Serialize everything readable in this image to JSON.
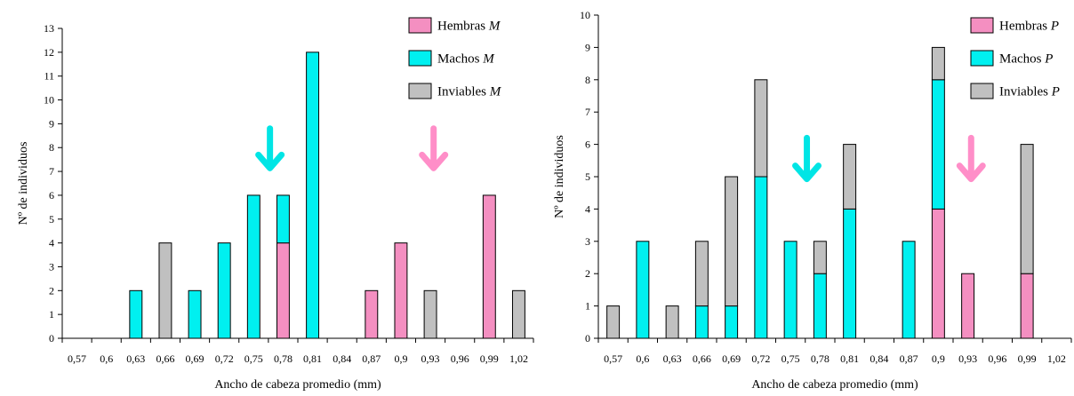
{
  "colors": {
    "hembras": "#f48fc1",
    "machos": "#00f0f0",
    "inviables": "#c0c0c0",
    "arrow_cyan": "#00e5e5",
    "arrow_pink": "#ff8ec8"
  },
  "chart_data": [
    {
      "type": "bar",
      "stacked": true,
      "xlabel": "Ancho de cabeza promedio (mm)",
      "ylabel": "Nº de individuos",
      "ylim": [
        0,
        13
      ],
      "yticks": [
        0,
        1,
        2,
        3,
        4,
        5,
        6,
        7,
        8,
        9,
        10,
        11,
        12,
        13
      ],
      "categories": [
        "0,57",
        "0,6",
        "0,63",
        "0,66",
        "0,69",
        "0,72",
        "0,75",
        "0,78",
        "0,81",
        "0,84",
        "0,87",
        "0,9",
        "0,93",
        "0,96",
        "0,99",
        "1,02"
      ],
      "series": [
        {
          "key": "hembras",
          "name": "Hembras",
          "name_suffix": "M",
          "values": [
            0,
            0,
            0,
            0,
            0,
            0,
            0,
            4,
            0,
            0,
            2,
            4,
            0,
            0,
            6,
            0
          ]
        },
        {
          "key": "machos",
          "name": "Machos",
          "name_suffix": "M",
          "values": [
            0,
            0,
            2,
            0,
            2,
            4,
            6,
            2,
            12,
            0,
            0,
            0,
            0,
            0,
            0,
            0
          ]
        },
        {
          "key": "inviables",
          "name": "Inviables",
          "name_suffix": "M",
          "values": [
            0,
            0,
            0,
            4,
            0,
            0,
            0,
            0,
            0,
            0,
            0,
            0,
            2,
            0,
            0,
            2
          ]
        }
      ],
      "arrows": [
        {
          "color": "arrow_cyan",
          "x": 0.7666,
          "y_top": 8.8,
          "y_bottom": 7.1
        },
        {
          "color": "arrow_pink",
          "x": 0.9333,
          "y_top": 8.8,
          "y_bottom": 7.1
        }
      ],
      "legend": "top-right",
      "grid": false
    },
    {
      "type": "bar",
      "stacked": true,
      "xlabel": "Ancho de cabeza promedio (mm)",
      "ylabel": "Nº de individuos",
      "ylim": [
        0,
        10
      ],
      "yticks": [
        0,
        1,
        2,
        3,
        4,
        5,
        6,
        7,
        8,
        9,
        10
      ],
      "categories": [
        "0,57",
        "0,6",
        "0,63",
        "0,66",
        "0,69",
        "0,72",
        "0,75",
        "0,78",
        "0,81",
        "0,84",
        "0,87",
        "0,9",
        "0,93",
        "0,96",
        "0,99",
        "1,02"
      ],
      "series": [
        {
          "key": "hembras",
          "name": "Hembras",
          "name_suffix": "P",
          "values": [
            0,
            0,
            0,
            0,
            0,
            0,
            0,
            0,
            0,
            0,
            0,
            4,
            2,
            0,
            2,
            0
          ]
        },
        {
          "key": "machos",
          "name": "Machos",
          "name_suffix": "P",
          "values": [
            0,
            3,
            0,
            1,
            1,
            5,
            3,
            2,
            4,
            0,
            3,
            4,
            0,
            0,
            0,
            0
          ]
        },
        {
          "key": "inviables",
          "name": "Inviables",
          "name_suffix": "P",
          "values": [
            1,
            0,
            1,
            2,
            4,
            3,
            0,
            1,
            2,
            0,
            0,
            1,
            0,
            0,
            4,
            0
          ]
        }
      ],
      "arrows": [
        {
          "color": "arrow_cyan",
          "x": 0.7666,
          "y_top": 6.2,
          "y_bottom": 4.9
        },
        {
          "color": "arrow_pink",
          "x": 0.9333,
          "y_top": 6.2,
          "y_bottom": 4.9
        }
      ],
      "legend": "top-right",
      "grid": false
    }
  ]
}
